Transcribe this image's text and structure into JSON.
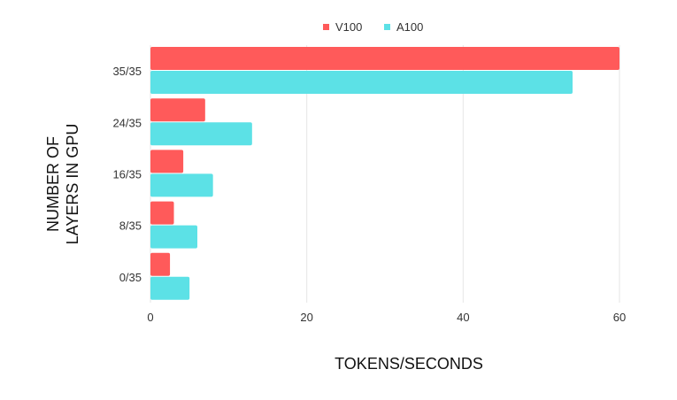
{
  "chart_data": {
    "type": "bar",
    "orientation": "horizontal",
    "title": "",
    "xlabel": "TOKENS/SECONDS",
    "ylabel": "NUMBER OF LAYERS IN GPU",
    "ylabel_lines": [
      "NUMBER OF",
      "LAYERS IN GPU"
    ],
    "categories": [
      "35/35",
      "24/35",
      "16/35",
      "8/35",
      "0/35"
    ],
    "series": [
      {
        "name": "V100",
        "color": "#ff5a5a",
        "values": [
          60,
          7,
          4.2,
          3,
          2.5
        ]
      },
      {
        "name": "A100",
        "color": "#5ce1e6",
        "values": [
          54,
          13,
          8,
          6,
          5
        ]
      }
    ],
    "xlim": [
      0,
      60
    ],
    "xticks": [
      "0",
      "20",
      "40",
      "60"
    ],
    "grid": "vertical",
    "legend_position": "top-center"
  }
}
